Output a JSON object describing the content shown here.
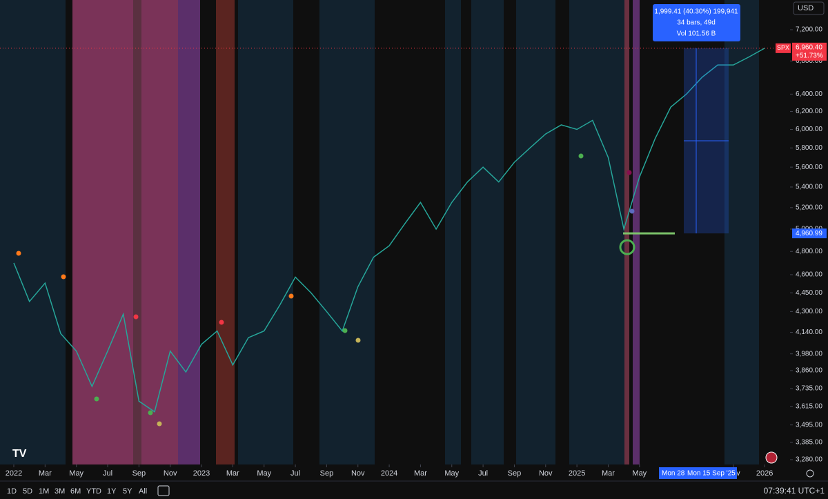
{
  "chart_data": {
    "type": "line",
    "symbol": "SPX",
    "currency": "USD",
    "x": [
      "2022-01",
      "2022-02",
      "2022-03",
      "2022-04",
      "2022-05",
      "2022-06",
      "2022-07",
      "2022-08",
      "2022-09",
      "2022-10",
      "2022-11",
      "2022-12",
      "2023-01",
      "2023-02",
      "2023-03",
      "2023-04",
      "2023-05",
      "2023-06",
      "2023-07",
      "2023-08",
      "2023-09",
      "2023-10",
      "2023-11",
      "2023-12",
      "2024-01",
      "2024-02",
      "2024-03",
      "2024-04",
      "2024-05",
      "2024-06",
      "2024-07",
      "2024-08",
      "2024-09",
      "2024-10",
      "2024-11",
      "2024-12",
      "2025-01",
      "2025-02",
      "2025-03",
      "2025-04",
      "2025-05",
      "2025-06",
      "2025-07",
      "2025-08",
      "2025-09",
      "2025-10",
      "2025-11",
      "2025-12",
      "2026-01"
    ],
    "series": [
      {
        "name": "SPX",
        "color": "#26a69a",
        "values": [
          4700,
          4380,
          4530,
          4130,
          4000,
          3750,
          4000,
          4280,
          3650,
          3580,
          4000,
          3850,
          4050,
          4150,
          3900,
          4100,
          4150,
          4350,
          4580,
          4450,
          4300,
          4150,
          4500,
          4750,
          4850,
          5050,
          5250,
          5000,
          5250,
          5450,
          5600,
          5450,
          5650,
          5800,
          5950,
          6050,
          6000,
          6100,
          5700,
          5000,
          5500,
          5900,
          6250,
          6400,
          6600,
          6750,
          6750,
          6850,
          6960
        ]
      }
    ],
    "ylim": [
      3251,
      7602
    ],
    "log": true,
    "yticks": [
      {
        "value": 7200,
        "label": "7,200.00"
      },
      {
        "value": 6800,
        "label": "6,800.00"
      },
      {
        "value": 6400,
        "label": "6,400.00"
      },
      {
        "value": 6200,
        "label": "6,200.00"
      },
      {
        "value": 6000,
        "label": "6,000.00"
      },
      {
        "value": 5800,
        "label": "5,800.00"
      },
      {
        "value": 5600,
        "label": "5,600.00"
      },
      {
        "value": 5400,
        "label": "5,400.00"
      },
      {
        "value": 5200,
        "label": "5,200.00"
      },
      {
        "value": 5000,
        "label": "5,000.00"
      },
      {
        "value": 4800,
        "label": "4,800.00"
      },
      {
        "value": 4600,
        "label": "4,600.00"
      },
      {
        "value": 4450,
        "label": "4,450.00"
      },
      {
        "value": 4300,
        "label": "4,300.00"
      },
      {
        "value": 4140,
        "label": "4,140.00"
      },
      {
        "value": 3980,
        "label": "3,980.00"
      },
      {
        "value": 3860,
        "label": "3,860.00"
      },
      {
        "value": 3735,
        "label": "3,735.00"
      },
      {
        "value": 3615,
        "label": "3,615.00"
      },
      {
        "value": 3495,
        "label": "3,495.00"
      },
      {
        "value": 3385,
        "label": "3,385.00"
      },
      {
        "value": 3280,
        "label": "3,280.00"
      }
    ],
    "xticks": [
      {
        "value": "2022-01",
        "label": "2022"
      },
      {
        "value": "2022-03",
        "label": "Mar"
      },
      {
        "value": "2022-05",
        "label": "May"
      },
      {
        "value": "2022-07",
        "label": "Jul"
      },
      {
        "value": "2022-09",
        "label": "Sep"
      },
      {
        "value": "2022-11",
        "label": "Nov"
      },
      {
        "value": "2023-01",
        "label": "2023"
      },
      {
        "value": "2023-03",
        "label": "Mar"
      },
      {
        "value": "2023-05",
        "label": "May"
      },
      {
        "value": "2023-07",
        "label": "Jul"
      },
      {
        "value": "2023-09",
        "label": "Sep"
      },
      {
        "value": "2023-11",
        "label": "Nov"
      },
      {
        "value": "2024-01",
        "label": "2024"
      },
      {
        "value": "2024-03",
        "label": "Mar"
      },
      {
        "value": "2024-05",
        "label": "May"
      },
      {
        "value": "2024-07",
        "label": "Jul"
      },
      {
        "value": "2024-09",
        "label": "Sep"
      },
      {
        "value": "2024-11",
        "label": "Nov"
      },
      {
        "value": "2025-01",
        "label": "2025"
      },
      {
        "value": "2025-03",
        "label": "Mar"
      },
      {
        "value": "2025-05",
        "label": "May"
      },
      {
        "value": "2025-11",
        "label": "Nov"
      },
      {
        "value": "2026-01",
        "label": "2026"
      }
    ],
    "last_price": {
      "value": 6960.4,
      "label": "6,960.40",
      "change": "+51.73%"
    },
    "marked_price": {
      "value": 4960.99,
      "label": "4,960.99"
    },
    "measure": {
      "line1": "1,999.41 (40.30%) 199,941",
      "line2": "34 bars, 49d",
      "line3": "Vol 101.56 B",
      "start_label": "Mon 28",
      "end_label": "Mon 15 Sep '25"
    }
  },
  "toolbar": {
    "ranges": [
      "1D",
      "5D",
      "1M",
      "3M",
      "6M",
      "YTD",
      "1Y",
      "5Y",
      "All"
    ],
    "clock": "07:39:41 UTC+1"
  }
}
